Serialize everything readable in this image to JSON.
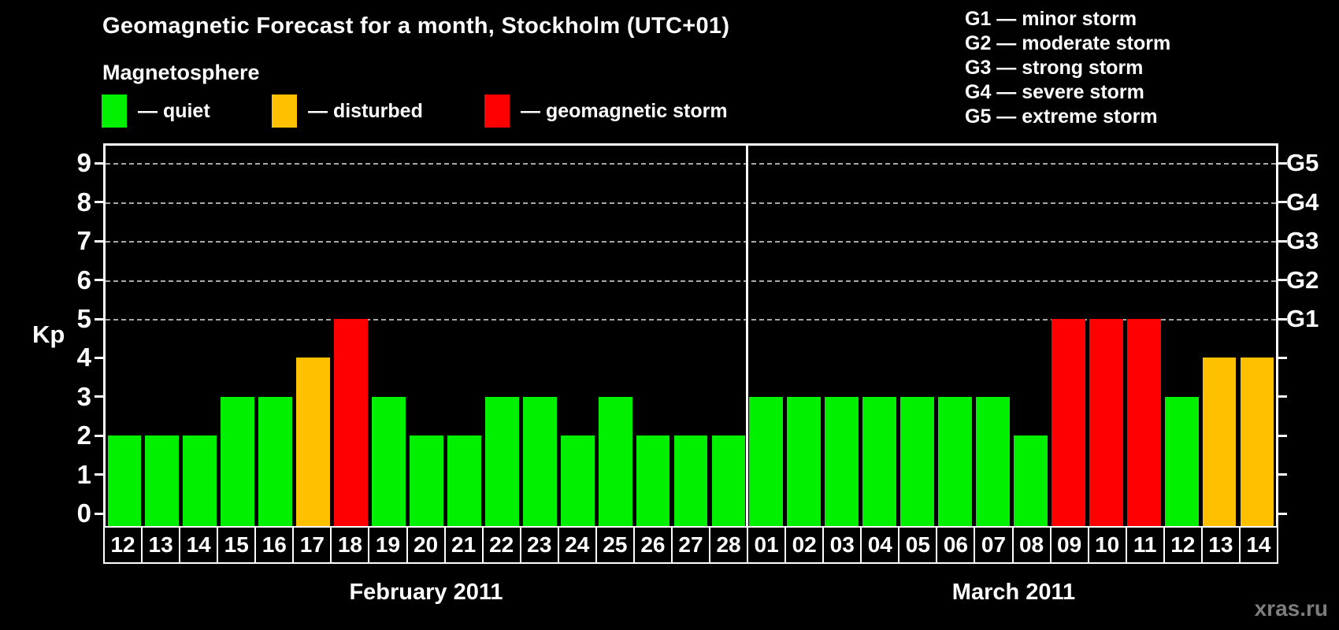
{
  "title": "Geomagnetic Forecast for a month, Stockholm (UTC+01)",
  "legend": {
    "heading": "Magnetosphere",
    "items": [
      {
        "label": "— quiet",
        "color": "#00f000",
        "icon": "quiet-swatch"
      },
      {
        "label": "— disturbed",
        "color": "#ffc000",
        "icon": "disturbed-swatch"
      },
      {
        "label": "— geomagnetic storm",
        "color": "#ff0000",
        "icon": "storm-swatch"
      }
    ]
  },
  "g_scale_legend": [
    "G1 — minor storm",
    "G2 — moderate storm",
    "G3 — strong storm",
    "G4 — severe storm",
    "G5 — extreme storm"
  ],
  "watermark": "xras.ru",
  "chart_data": {
    "type": "bar",
    "ylabel": "Kp",
    "ylim": [
      0,
      9
    ],
    "yticks": [
      0,
      1,
      2,
      3,
      4,
      5,
      6,
      7,
      8,
      9
    ],
    "grid_levels": [
      5,
      6,
      7,
      8,
      9
    ],
    "grid_style": "dashed",
    "legend_position": "top-left",
    "right_axis": [
      {
        "kp": 5,
        "label": "G1"
      },
      {
        "kp": 6,
        "label": "G2"
      },
      {
        "kp": 7,
        "label": "G3"
      },
      {
        "kp": 8,
        "label": "G4"
      },
      {
        "kp": 9,
        "label": "G5"
      }
    ],
    "state_colors": {
      "quiet": "#00f000",
      "disturbed": "#ffc000",
      "storm": "#ff0000"
    },
    "groups": [
      {
        "label": "February 2011",
        "categories": [
          "12",
          "13",
          "14",
          "15",
          "16",
          "17",
          "18",
          "19",
          "20",
          "21",
          "22",
          "23",
          "24",
          "25",
          "26",
          "27",
          "28"
        ],
        "values": [
          2,
          2,
          2,
          3,
          3,
          4,
          5,
          3,
          2,
          2,
          3,
          3,
          2,
          3,
          2,
          2,
          2
        ],
        "states": [
          "quiet",
          "quiet",
          "quiet",
          "quiet",
          "quiet",
          "disturbed",
          "storm",
          "quiet",
          "quiet",
          "quiet",
          "quiet",
          "quiet",
          "quiet",
          "quiet",
          "quiet",
          "quiet",
          "quiet"
        ]
      },
      {
        "label": "March 2011",
        "categories": [
          "01",
          "02",
          "03",
          "04",
          "05",
          "06",
          "07",
          "08",
          "09",
          "10",
          "11",
          "12",
          "13",
          "14"
        ],
        "values": [
          3,
          3,
          3,
          3,
          3,
          3,
          3,
          2,
          5,
          5,
          5,
          3,
          4,
          4
        ],
        "states": [
          "quiet",
          "quiet",
          "quiet",
          "quiet",
          "quiet",
          "quiet",
          "quiet",
          "quiet",
          "storm",
          "storm",
          "storm",
          "quiet",
          "disturbed",
          "disturbed"
        ]
      }
    ]
  }
}
